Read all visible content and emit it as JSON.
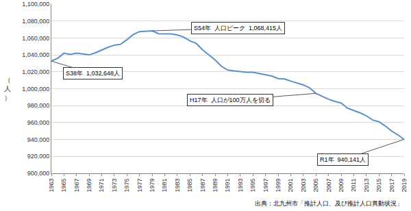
{
  "chart_data": {
    "type": "line",
    "ylabel": "（人）",
    "source": "出典：北九州市「推計人口、及び推計人口異動状況」",
    "x": [
      1963,
      1964,
      1965,
      1966,
      1967,
      1968,
      1969,
      1970,
      1971,
      1972,
      1973,
      1974,
      1975,
      1976,
      1977,
      1978,
      1979,
      1980,
      1981,
      1982,
      1983,
      1984,
      1985,
      1986,
      1987,
      1988,
      1989,
      1990,
      1991,
      1992,
      1993,
      1994,
      1995,
      1996,
      1997,
      1998,
      1999,
      2000,
      2001,
      2002,
      2003,
      2004,
      2005,
      2006,
      2007,
      2008,
      2009,
      2010,
      2011,
      2012,
      2013,
      2014,
      2015,
      2016,
      2017,
      2018,
      2019
    ],
    "values": [
      1032648,
      1036000,
      1042000,
      1040500,
      1042000,
      1041000,
      1040000,
      1042500,
      1046000,
      1049000,
      1051500,
      1052500,
      1058000,
      1064000,
      1067500,
      1067800,
      1068415,
      1065000,
      1065000,
      1064800,
      1063500,
      1061000,
      1056500,
      1053500,
      1046000,
      1040000,
      1034000,
      1026500,
      1022000,
      1021000,
      1020000,
      1019500,
      1019500,
      1018000,
      1016500,
      1015000,
      1012000,
      1011500,
      1009000,
      1007000,
      1004500,
      1001000,
      994500,
      991000,
      987500,
      985000,
      983000,
      977000,
      974500,
      971500,
      968000,
      963000,
      961000,
      956000,
      950000,
      945500,
      940141
    ],
    "color": "#5b8fc9",
    "xlim": [
      1963,
      2019
    ],
    "xticks": [
      1963,
      1965,
      1967,
      1969,
      1971,
      1973,
      1975,
      1977,
      1979,
      1981,
      1983,
      1985,
      1987,
      1989,
      1991,
      1993,
      1995,
      1997,
      1999,
      2001,
      2003,
      2005,
      2007,
      2009,
      2011,
      2013,
      2015,
      2017,
      2019
    ],
    "ylim": [
      900000,
      1100000
    ],
    "yticks": [
      {
        "value": 900000,
        "label": "900,000"
      },
      {
        "value": 920000,
        "label": "920,000"
      },
      {
        "value": 940000,
        "label": "940,000"
      },
      {
        "value": 960000,
        "label": "960,000"
      },
      {
        "value": 980000,
        "label": "980,000"
      },
      {
        "value": 1000000,
        "label": "1,000,000"
      },
      {
        "value": 1020000,
        "label": "1,020,000"
      },
      {
        "value": 1040000,
        "label": "1,040,000"
      },
      {
        "value": 1060000,
        "label": "1,060,000"
      },
      {
        "value": 1080000,
        "label": "1,080,000"
      },
      {
        "value": 1100000,
        "label": "1,100,000"
      }
    ],
    "grid": true,
    "annotations": [
      {
        "text": "S38年  1,032,648人",
        "x": 1963
      },
      {
        "text": "S54年  人口ピーク  1,068,415人",
        "x": 1979
      },
      {
        "text": "H17年  人口が100万人を切る",
        "x": 2005
      },
      {
        "text": "R1年  940,141人",
        "x": 2019
      }
    ]
  }
}
